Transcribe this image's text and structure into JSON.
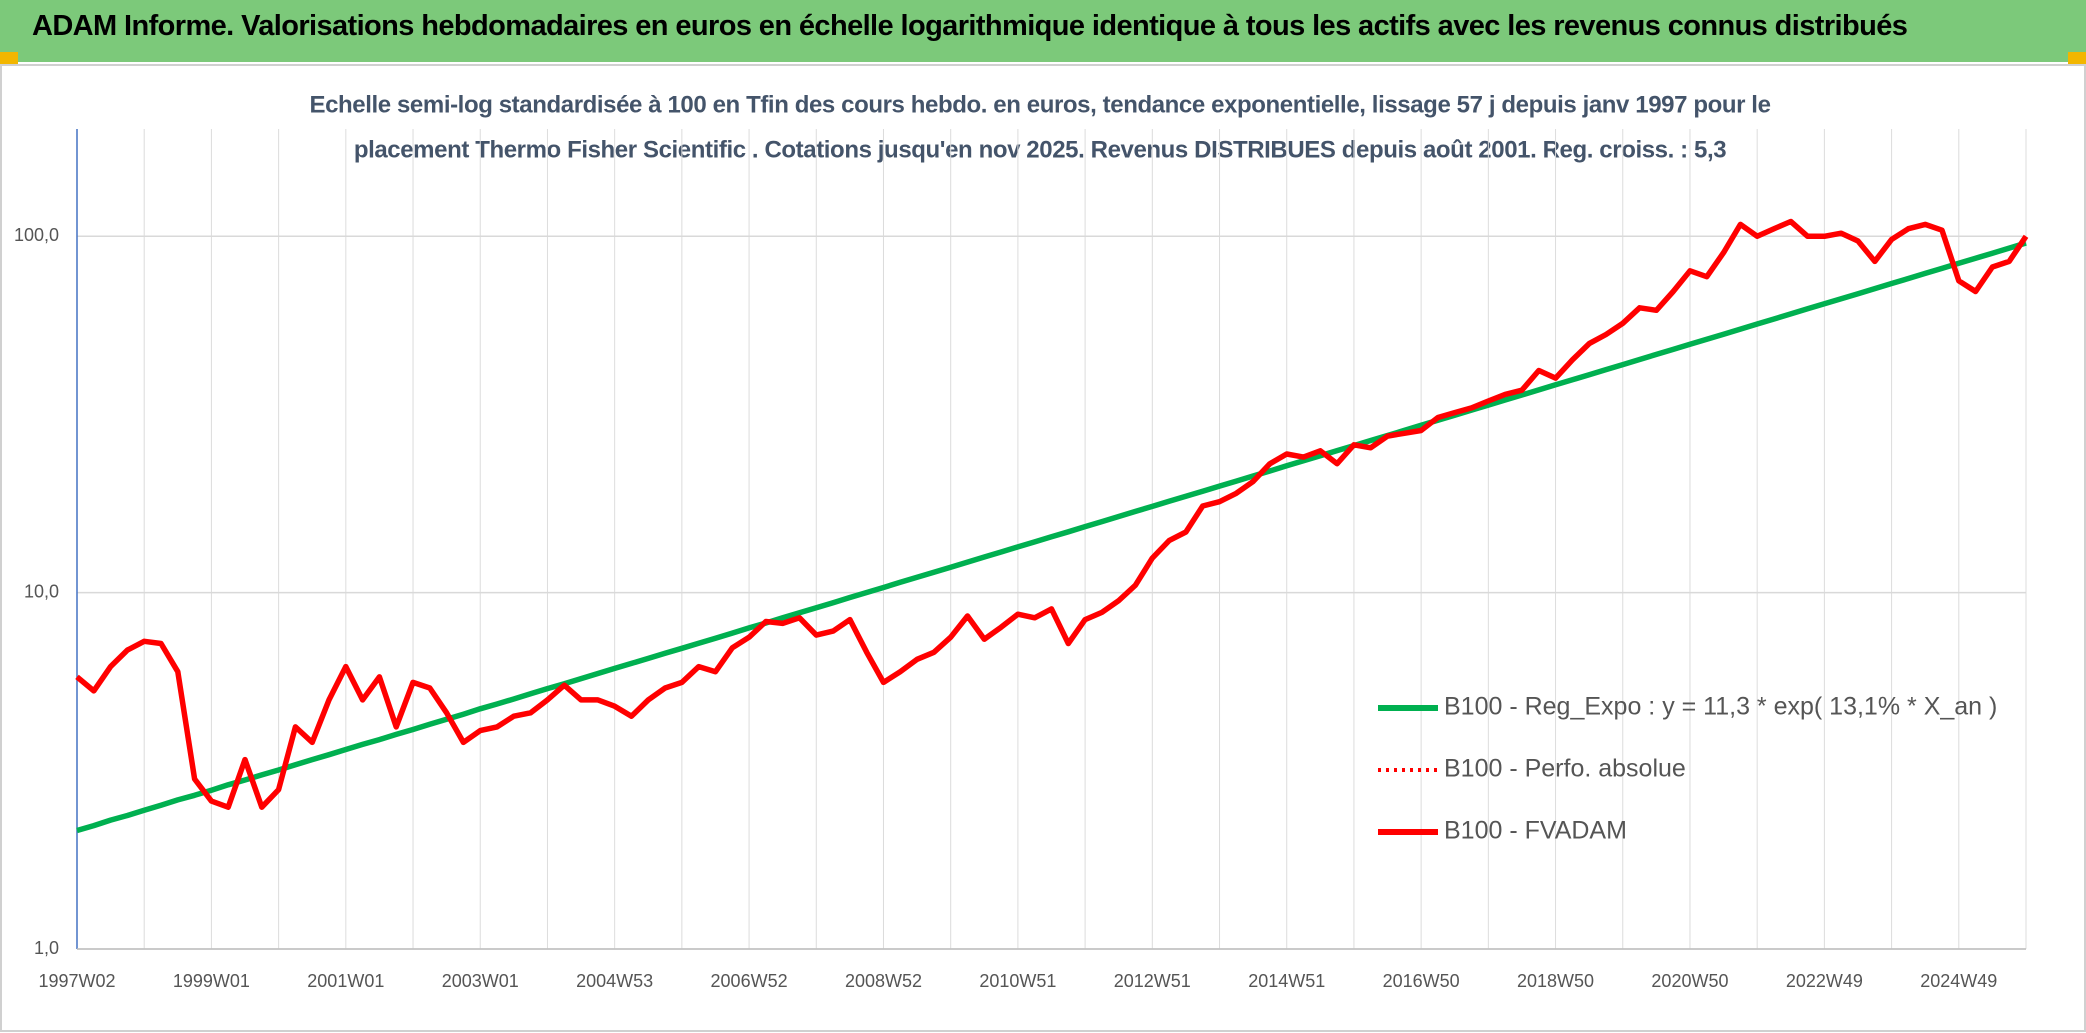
{
  "header": {
    "title": "ADAM Informe. Valorisations hebdomadaires en euros en échelle logarithmique identique à tous les actifs avec les revenus connus distribués"
  },
  "chart_data": {
    "type": "line",
    "subtitle": [
      "Echelle semi-log standardisée à 100 en Tfin des cours hebdo. en euros, tendance exponentielle, lissage 57 j depuis janv 1997 pour le",
      "placement Thermo Fisher Scientific . Cotations jusqu'en nov 2025. Revenus DISTRIBUES depuis août 2001. Reg. croiss. : 5,3"
    ],
    "categories": [
      "1997W02",
      null,
      null,
      null,
      null,
      null,
      null,
      null,
      "1999W01",
      null,
      null,
      null,
      null,
      null,
      null,
      null,
      "2001W01",
      null,
      null,
      null,
      null,
      null,
      null,
      null,
      "2003W01",
      null,
      null,
      null,
      null,
      null,
      null,
      null,
      "2004W53",
      null,
      null,
      null,
      null,
      null,
      null,
      null,
      "2006W52",
      null,
      null,
      null,
      null,
      null,
      null,
      null,
      "2008W52",
      null,
      null,
      null,
      null,
      null,
      null,
      null,
      "2010W51",
      null,
      null,
      null,
      null,
      null,
      null,
      null,
      "2012W51",
      null,
      null,
      null,
      null,
      null,
      null,
      null,
      "2014W51",
      null,
      null,
      null,
      null,
      null,
      null,
      null,
      "2016W50",
      null,
      null,
      null,
      null,
      null,
      null,
      null,
      "2018W50",
      null,
      null,
      null,
      null,
      null,
      null,
      null,
      "2020W50",
      null,
      null,
      null,
      null,
      null,
      null,
      null,
      "2022W49",
      null,
      null,
      null,
      null,
      null,
      null,
      null,
      "2024W49",
      null,
      null,
      null,
      null
    ],
    "log_scale": true,
    "ylim": [
      1,
      200
    ],
    "yticks": [
      {
        "value": 1,
        "label": "1,0"
      },
      {
        "value": 10,
        "label": "10,0"
      },
      {
        "value": 100,
        "label": "100,0"
      }
    ],
    "grid": true,
    "legend": "right",
    "series": [
      {
        "name": "B100 - Reg_Expo : y = 11,3 * exp( 13,1% *  X_an )",
        "color": "#00b050",
        "style": "solid",
        "values": [
          2.15,
          2.22,
          2.3,
          2.37,
          2.45,
          2.53,
          2.62,
          2.7,
          2.79,
          2.89,
          2.98,
          3.08,
          3.18,
          3.29,
          3.4,
          3.51,
          3.63,
          3.75,
          3.87,
          4.0,
          4.13,
          4.27,
          4.41,
          4.56,
          4.72,
          4.87,
          5.03,
          5.2,
          5.38,
          5.55,
          5.74,
          5.93,
          6.13,
          6.33,
          6.54,
          6.76,
          6.98,
          7.21,
          7.45,
          7.7,
          7.96,
          8.22,
          8.5,
          8.78,
          9.07,
          9.37,
          9.69,
          10.01,
          10.34,
          10.69,
          11.04,
          11.41,
          11.79,
          12.18,
          12.59,
          13.0,
          13.44,
          13.88,
          14.35,
          14.82,
          15.32,
          15.83,
          16.35,
          16.9,
          17.46,
          18.04,
          18.64,
          19.26,
          19.9,
          20.56,
          21.25,
          21.95,
          22.69,
          23.44,
          24.22,
          25.03,
          25.86,
          26.72,
          27.61,
          28.53,
          29.48,
          30.46,
          31.47,
          32.52,
          33.6,
          34.72,
          35.87,
          37.07,
          38.3,
          39.57,
          40.89,
          42.25,
          43.65,
          45.11,
          46.61,
          48.16,
          49.76,
          51.41,
          53.12,
          54.89,
          56.72,
          58.6,
          60.55,
          62.57,
          64.65,
          66.8,
          69.02,
          71.31,
          73.68,
          76.13,
          78.66,
          81.28,
          83.98,
          86.77,
          89.66,
          92.64,
          95.72
        ]
      },
      {
        "name": "B100 - Perfo. absolue",
        "color": "#ff0000",
        "style": "dotted",
        "values": [
          null,
          null,
          null,
          null,
          null,
          null,
          null,
          null,
          null,
          null,
          null,
          null,
          null,
          null,
          null,
          null,
          null,
          null,
          null,
          null,
          null,
          null,
          null,
          null,
          null,
          null,
          null,
          null,
          null,
          null,
          null,
          null,
          null,
          null,
          null,
          null,
          null,
          null,
          null,
          null,
          null,
          null,
          null,
          null,
          null,
          null,
          null,
          null,
          null,
          null,
          null,
          null,
          null,
          null,
          null,
          null,
          null,
          null,
          null,
          null,
          null,
          null,
          null,
          null,
          null,
          null,
          null,
          null,
          null,
          null,
          null,
          null,
          null,
          null,
          null,
          null,
          null,
          null,
          null,
          null,
          null,
          null,
          null,
          null,
          null,
          null,
          null,
          null,
          null,
          null,
          null,
          null,
          null,
          null,
          null,
          null,
          null,
          null,
          null,
          null,
          null,
          null,
          null,
          null,
          null,
          null,
          null,
          null,
          null,
          null,
          null,
          null,
          null,
          null,
          null,
          null,
          null
        ]
      },
      {
        "name": "B100 - FVADAM",
        "color": "#ff0000",
        "style": "solid",
        "values": [
          5.8,
          5.3,
          6.2,
          6.9,
          7.3,
          7.2,
          6.0,
          3.0,
          2.6,
          2.5,
          3.4,
          2.5,
          2.8,
          4.2,
          3.8,
          5.0,
          6.2,
          5.0,
          5.8,
          4.2,
          5.6,
          5.4,
          4.6,
          3.8,
          4.1,
          4.2,
          4.5,
          4.6,
          5.0,
          5.5,
          5.0,
          5.0,
          4.8,
          4.5,
          5.0,
          5.4,
          5.6,
          6.2,
          6.0,
          7.0,
          7.5,
          8.3,
          8.2,
          8.5,
          7.6,
          7.8,
          8.4,
          6.8,
          5.6,
          6.0,
          6.5,
          6.8,
          7.5,
          8.6,
          7.4,
          8.0,
          8.7,
          8.5,
          9.0,
          7.2,
          8.4,
          8.8,
          9.5,
          10.5,
          12.5,
          14.0,
          14.8,
          17.5,
          18.0,
          19.0,
          20.5,
          23.0,
          24.5,
          24.0,
          25.0,
          23.0,
          26.0,
          25.5,
          27.5,
          28.0,
          28.5,
          31.0,
          32.0,
          33.0,
          34.5,
          36.0,
          37.0,
          42.0,
          40.0,
          45.0,
          50.0,
          53.0,
          57.0,
          63.0,
          62.0,
          70.0,
          80.0,
          77.0,
          90.0,
          108.0,
          100.0,
          105.0,
          110.0,
          100.0,
          100.0,
          102.0,
          97.0,
          85.0,
          98.0,
          105.0,
          108.0,
          104.0,
          75.0,
          70.0,
          82.0,
          85.0,
          100.0
        ]
      }
    ]
  }
}
